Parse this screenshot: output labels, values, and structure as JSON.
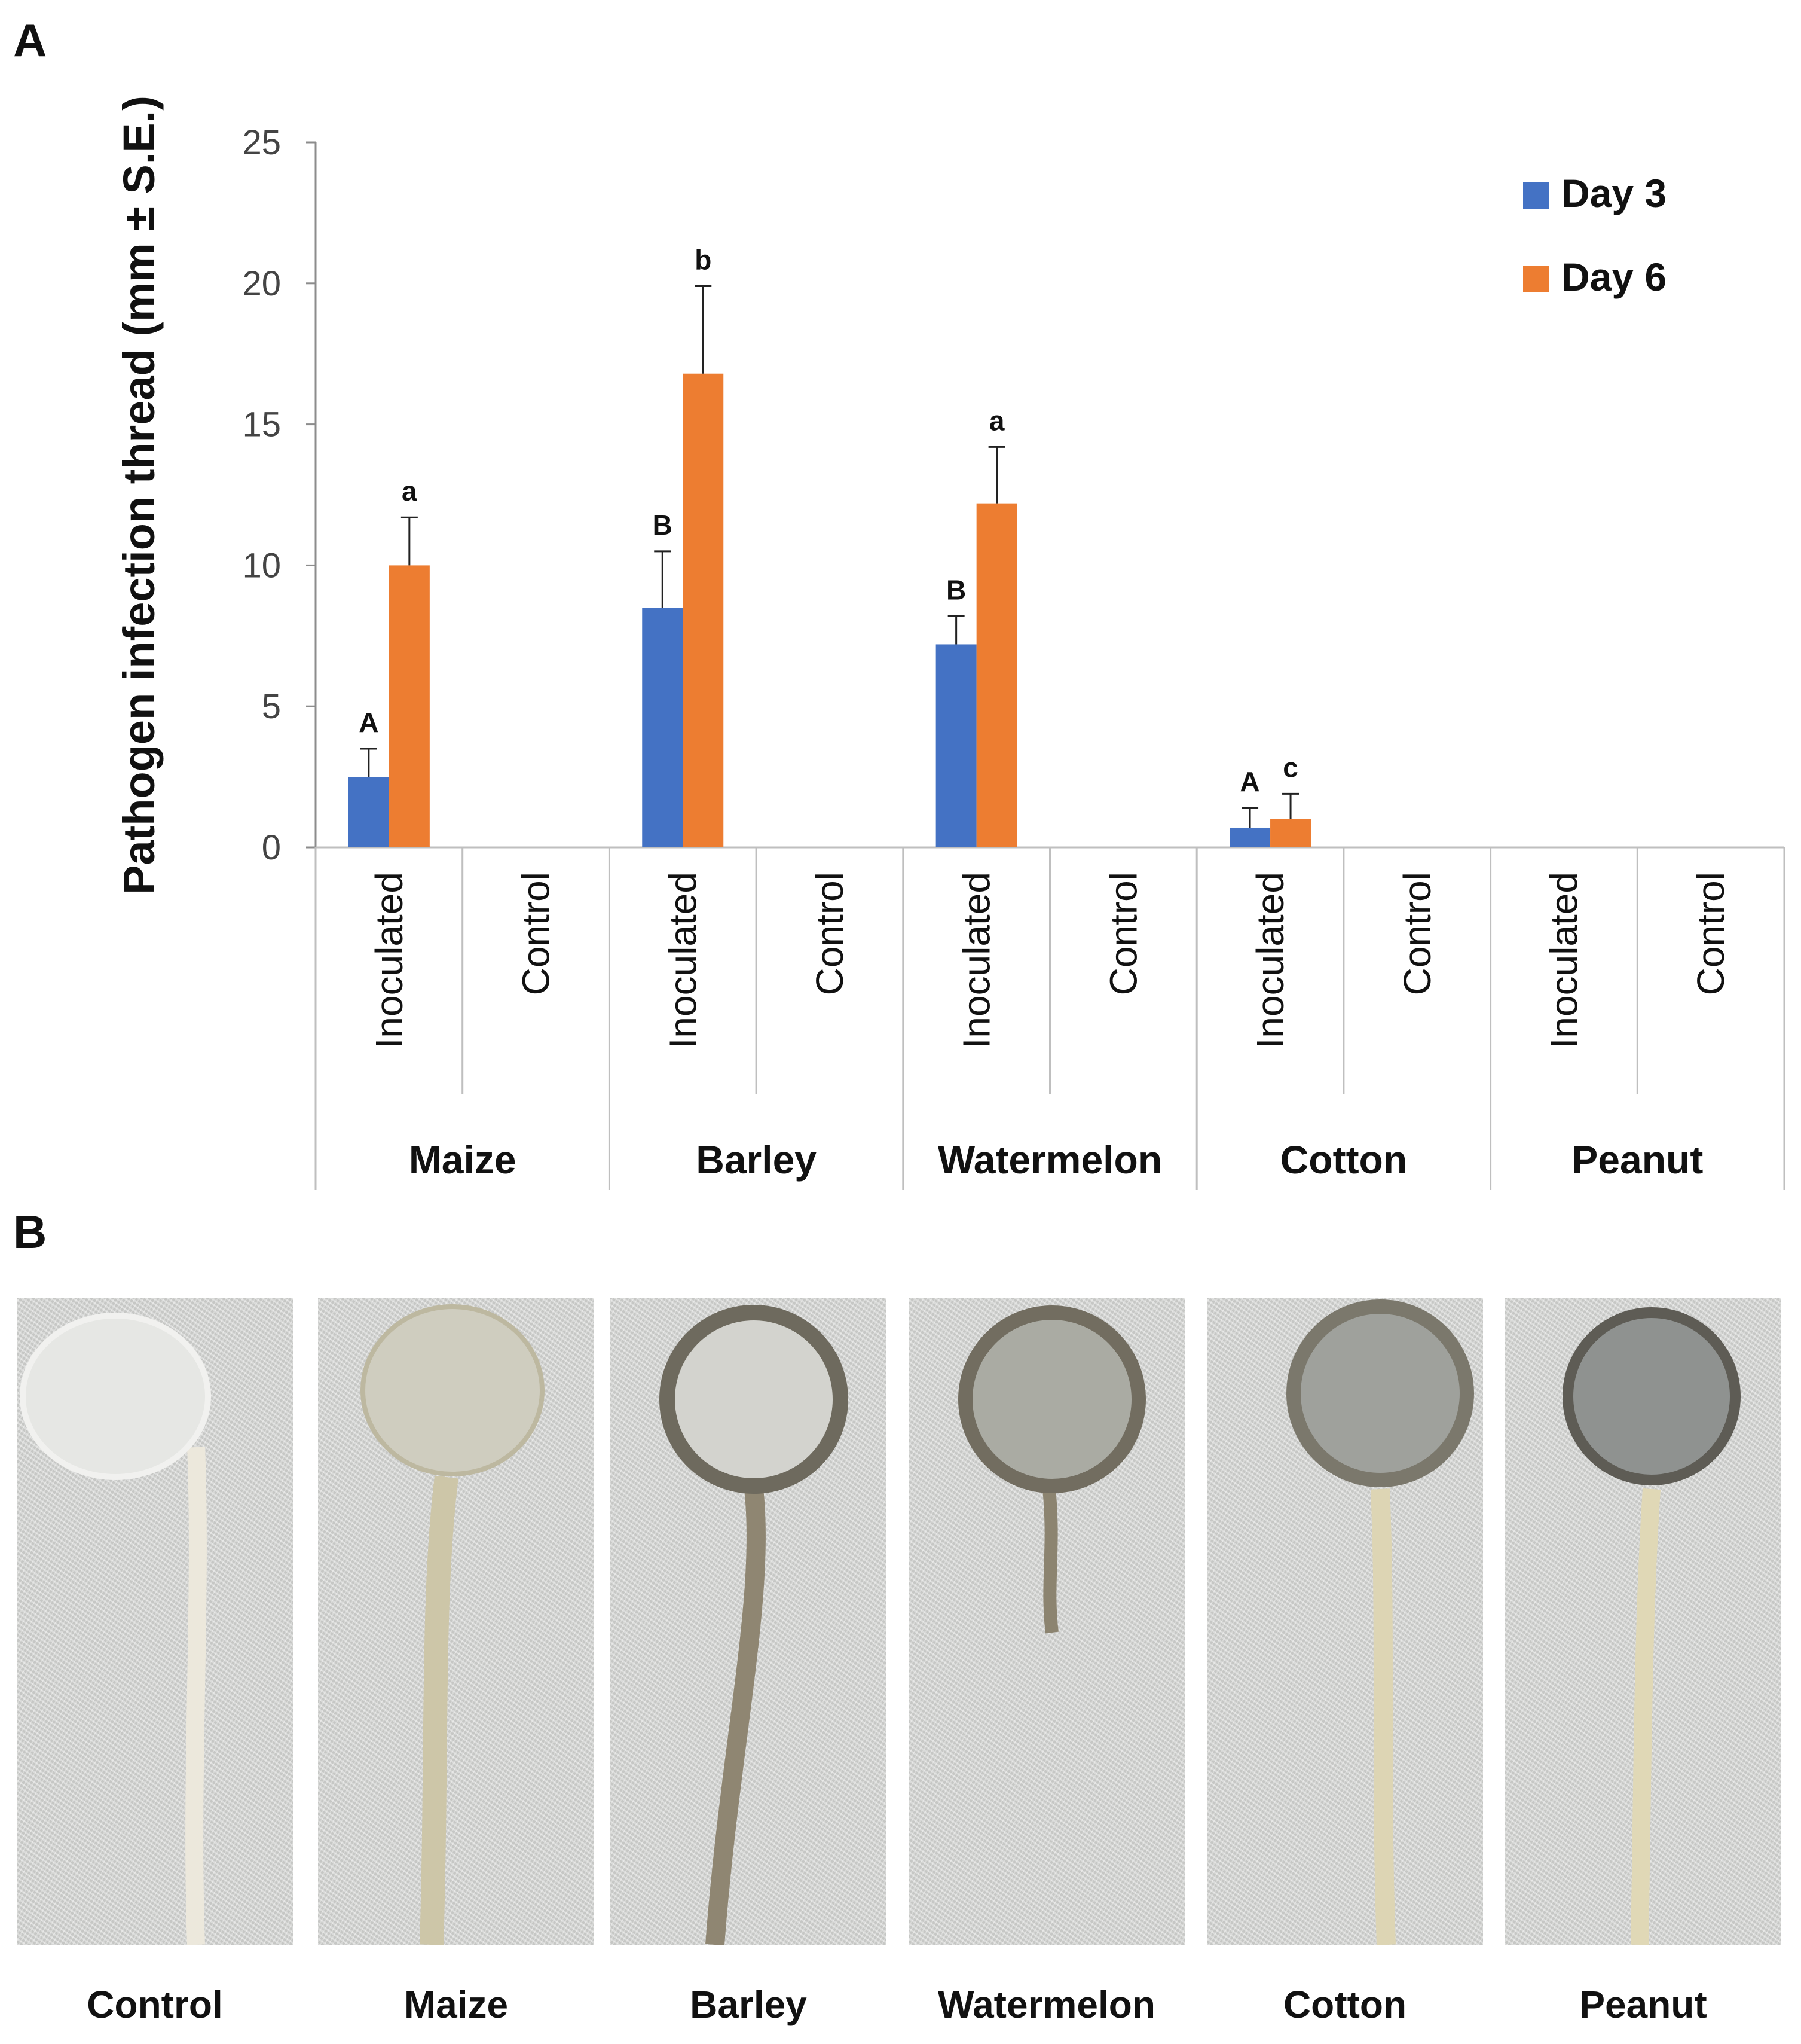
{
  "panels": {
    "a_label": "A",
    "b_label": "B"
  },
  "chart_data": {
    "type": "bar",
    "title": "",
    "ylabel": "Pathogen infection thread (mm ± S.E.)",
    "xlabel": "",
    "ylim": [
      0,
      25
    ],
    "yticks": [
      0,
      5,
      10,
      15,
      20,
      25
    ],
    "grid": false,
    "legend_position": "top-right",
    "groups": [
      "Maize",
      "Barley",
      "Watermelon",
      "Cotton",
      "Peanut"
    ],
    "subcategories": [
      "Inoculated",
      "Control"
    ],
    "series": [
      {
        "name": "Day 3",
        "color": "#4472C4",
        "values": [
          2.5,
          0,
          8.5,
          0,
          7.2,
          0,
          0.7,
          0,
          0,
          0
        ],
        "errors": [
          1.0,
          0,
          2.0,
          0,
          1.0,
          0,
          0.7,
          0,
          0,
          0
        ],
        "letters": [
          "A",
          "",
          "B",
          "",
          "B",
          "",
          "A",
          "",
          "",
          ""
        ]
      },
      {
        "name": "Day 6",
        "color": "#ED7D31",
        "values": [
          10.0,
          0,
          16.8,
          0,
          12.2,
          0,
          1.0,
          0,
          0,
          0
        ],
        "errors": [
          1.7,
          0,
          3.1,
          0,
          2.0,
          0,
          0.9,
          0,
          0,
          0
        ],
        "letters": [
          "a",
          "",
          "b",
          "",
          "a",
          "",
          "c",
          "",
          "",
          ""
        ]
      }
    ]
  },
  "photos": {
    "captions": [
      "Control",
      "Maize",
      "Barley",
      "Watermelon",
      "Cotton",
      "Peanut"
    ]
  }
}
